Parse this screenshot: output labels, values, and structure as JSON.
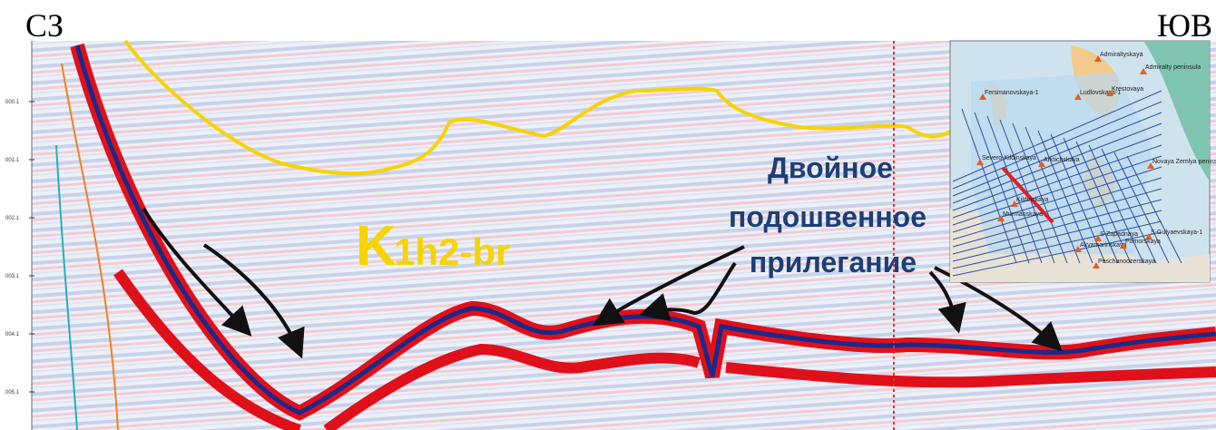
{
  "header": {
    "left": "СЗ",
    "right": "ЮВ"
  },
  "axis_labels": [
    "000.1",
    "001.1",
    "002.1",
    "003.1",
    "004.1",
    "005.1"
  ],
  "unit_label": {
    "main": "K",
    "rest": "1h2-br"
  },
  "annotation": [
    "Двойное",
    "подошвенное",
    "прилегание"
  ],
  "map": {
    "labels": [
      "Admiraltyskaya",
      "Admiralty peninsula",
      "Ludlovskaya-1",
      "Krestovaya",
      "Fersmanovskaya-1",
      "Severo-Kildinskaya",
      "Arktichskaya",
      "Novaya Zemlya peninsula",
      "Kildinskaya",
      "Murmanskaya",
      "S-Zapadnaya",
      "Akvamarinskaya",
      "S-Gulyaevskaya-1",
      "Pomorskaya",
      "Peschanoozerskaya"
    ]
  }
}
